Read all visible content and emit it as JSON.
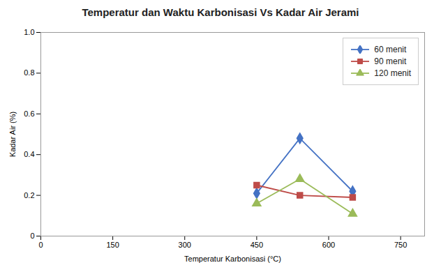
{
  "chart_data": {
    "type": "line",
    "title": "Temperatur dan Waktu Karbonisasi Vs Kadar Air Jerami",
    "xlabel": "Temperatur Karbonisasi (°C)",
    "ylabel": "Kadar Air (%)",
    "xlim": [
      0,
      800
    ],
    "ylim": [
      0,
      1.0
    ],
    "xticks": [
      0,
      150,
      300,
      450,
      600,
      750
    ],
    "yticks": [
      0,
      0.2,
      0.4,
      0.6,
      0.8,
      {
        "value": 1.0,
        "label": "1.0"
      }
    ],
    "grid": false,
    "legend": "upper right",
    "series": [
      {
        "name": "60 menit",
        "x": [
          450,
          540,
          650
        ],
        "values": [
          0.21,
          0.48,
          0.22
        ],
        "color": "#4472C4",
        "marker": "diamond"
      },
      {
        "name": "90 menit",
        "x": [
          450,
          540,
          650
        ],
        "values": [
          0.25,
          0.2,
          0.19
        ],
        "color": "#BE4B48",
        "marker": "square"
      },
      {
        "name": "120 menit",
        "x": [
          450,
          540,
          650
        ],
        "values": [
          0.16,
          0.28,
          0.11
        ],
        "color": "#9BBB59",
        "marker": "triangle"
      }
    ]
  }
}
